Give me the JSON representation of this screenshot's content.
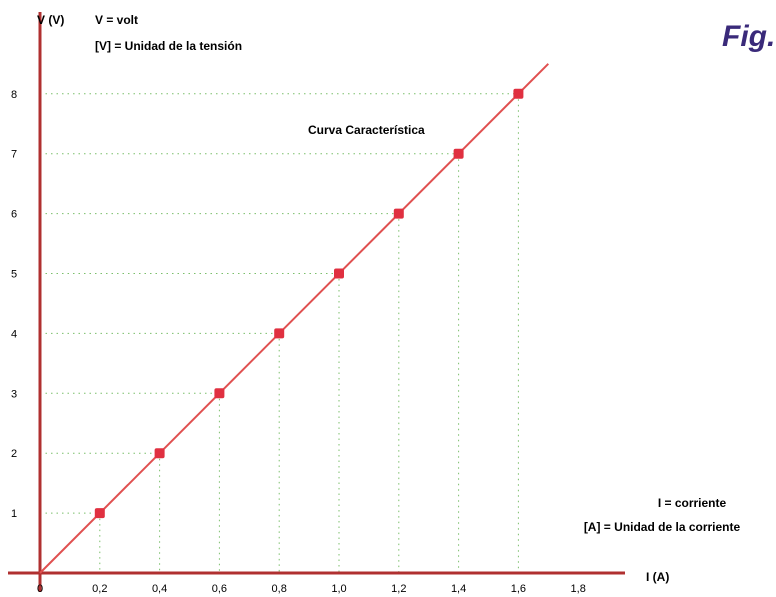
{
  "figure_label": "Fig.",
  "chart_data": {
    "type": "line",
    "x": [
      0.2,
      0.4,
      0.6,
      0.8,
      1.0,
      1.2,
      1.4,
      1.6
    ],
    "y": [
      1,
      2,
      3,
      4,
      5,
      6,
      7,
      8
    ],
    "xlim": [
      0,
      2.0
    ],
    "ylim": [
      0,
      9
    ],
    "x_ticks": [
      "0",
      "0,2",
      "0,4",
      "0,6",
      "0,8",
      "1,0",
      "1,2",
      "1,4",
      "1,6",
      "1,8"
    ],
    "x_tick_values": [
      0,
      0.2,
      0.4,
      0.6,
      0.8,
      1.0,
      1.2,
      1.4,
      1.6,
      1.8
    ],
    "y_ticks": [
      "1",
      "2",
      "3",
      "4",
      "5",
      "6",
      "7",
      "8"
    ],
    "y_tick_values": [
      1,
      2,
      3,
      4,
      5,
      6,
      7,
      8
    ],
    "line_x_end": 1.7,
    "ylabel": "V (V)",
    "ylabel_note_1": "V = volt",
    "ylabel_note_2": "[V] = Unidad de la tensión",
    "xlabel": "I (A)",
    "xlabel_note_1": "I = corriente",
    "xlabel_note_2": "[A] = Unidad de la corriente",
    "curve_label": "Curva Característica",
    "grid": "dotted drop lines to points",
    "colors": {
      "axis": "#b03030",
      "line": "#e05050",
      "point": "#e03040",
      "grid": "#7bbf6b"
    }
  }
}
